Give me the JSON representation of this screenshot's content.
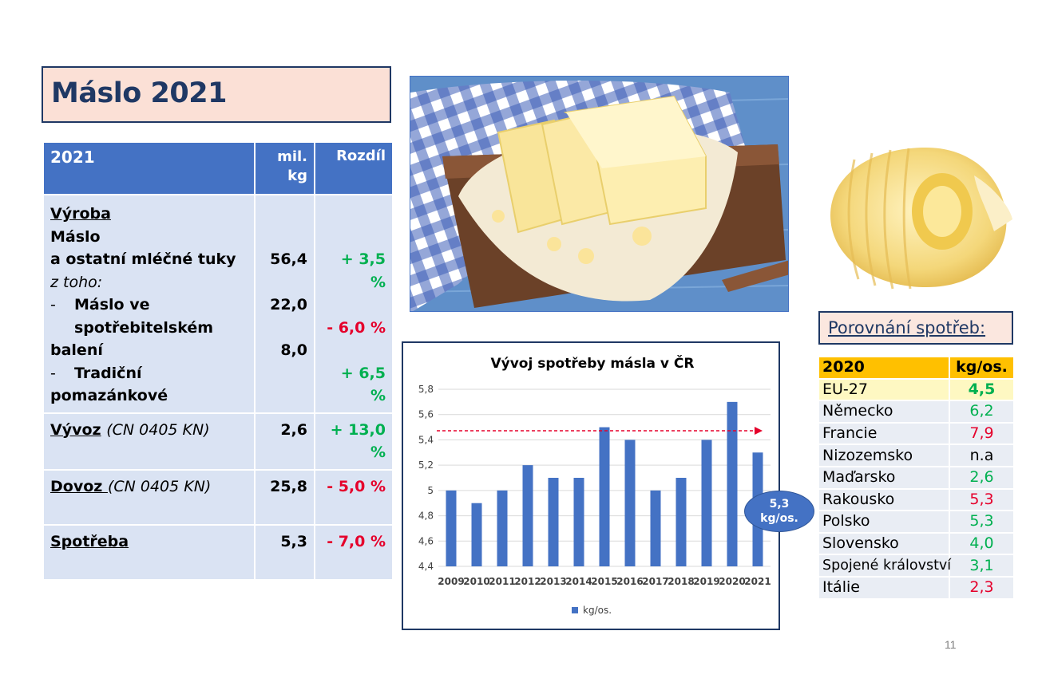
{
  "title": "Máslo 2021",
  "table": {
    "headers": {
      "col1": "2021",
      "col2a": "mil.",
      "col2b": "kg",
      "col3": "Rozdíl"
    },
    "vyroba": {
      "heading": "Výroba",
      "line1": "Máslo",
      "line2": "a ostatní mléčné tuky",
      "value": "56,4",
      "diff": "+ 3,5 %",
      "z_toho": "z toho:",
      "sub1_dash": "-",
      "sub1_line1": "Máslo ve",
      "sub1_line2": "spotřebitelském balení",
      "sub1_value": "22,0",
      "sub1_diff": "- 6,0 %",
      "sub2_dash": "-",
      "sub2_label": "Tradiční pomazánkové",
      "sub2_value": "8,0",
      "sub2_diff": "+ 6,5 %"
    },
    "vyvoz": {
      "label": "Vývoz",
      "code": "(CN 0405 KN)",
      "value": "2,6",
      "diff": "+ 13,0 %"
    },
    "dovoz": {
      "label": "Dovoz ",
      "code": "(CN 0405 KN)",
      "value": "25,8",
      "diff": "- 5,0 %"
    },
    "spotreba": {
      "label": "Spotřeba",
      "value": "5,3",
      "diff": "- 7,0 %"
    }
  },
  "bubble": {
    "line1": "5,3",
    "line2": "kg/os."
  },
  "comparison": {
    "title": "Porovnání spotřeb:",
    "header_country": "2020",
    "header_unit": "kg/os.",
    "rows": [
      {
        "country": "EU-27",
        "value": "4,5",
        "color": "#00b050"
      },
      {
        "country": "Německo",
        "value": "6,2",
        "color": "#00b050"
      },
      {
        "country": "Francie",
        "value": "7,9",
        "color": "#e5002b"
      },
      {
        "country": "Nizozemsko",
        "value": "n.a",
        "color": "#000000"
      },
      {
        "country": "Maďarsko",
        "value": "2,6",
        "color": "#00b050"
      },
      {
        "country": "Rakousko",
        "value": "5,3",
        "color": "#e5002b"
      },
      {
        "country": "Polsko",
        "value": "5,3",
        "color": "#00b050"
      },
      {
        "country": "Slovensko",
        "value": "4,0",
        "color": "#00b050"
      },
      {
        "country": "Spojené království",
        "value": "3,1",
        "color": "#00b050"
      },
      {
        "country": "Itálie",
        "value": "2,3",
        "color": "#e5002b"
      }
    ]
  },
  "page_number": "11",
  "chart_data": {
    "type": "bar",
    "title": "Vývoj spotřeby másla v ČR",
    "categories": [
      "2009",
      "2010",
      "2011",
      "2012",
      "2013",
      "2014",
      "2015",
      "2016",
      "2017",
      "2018",
      "2019",
      "2020",
      "2021"
    ],
    "series": [
      {
        "name": "kg/os.",
        "values": [
          5.0,
          4.9,
          5.0,
          5.2,
          5.1,
          5.1,
          5.5,
          5.4,
          5.0,
          5.1,
          5.4,
          5.7,
          5.3
        ],
        "color": "#4472c4"
      }
    ],
    "ylim": [
      4.4,
      5.8
    ],
    "yticks": [
      "4,4",
      "4,6",
      "4,8",
      "5",
      "5,2",
      "5,4",
      "5,6",
      "5,8"
    ],
    "grid": true,
    "legend": "bottom",
    "trend_arrow": {
      "color": "#e5002b",
      "style": "dashed"
    }
  }
}
